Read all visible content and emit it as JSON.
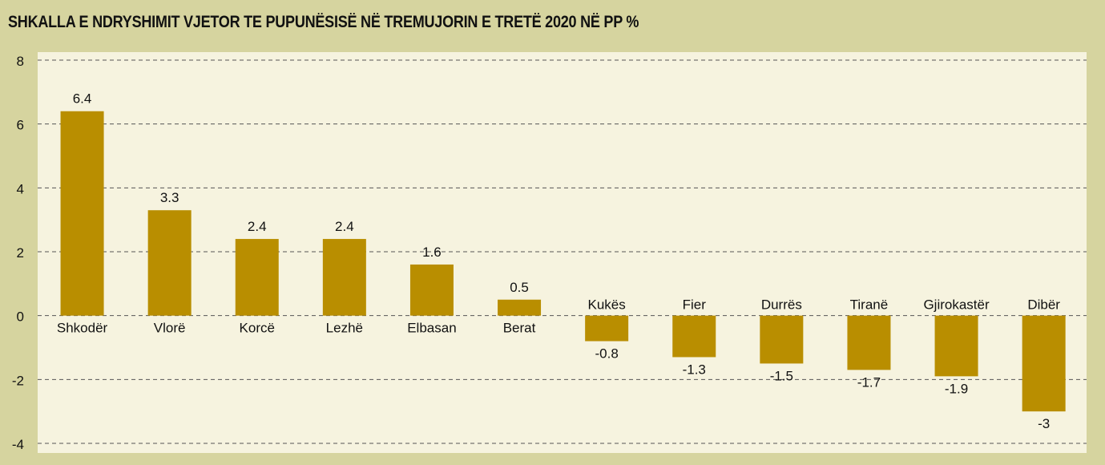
{
  "chart_data": {
    "type": "bar",
    "title": "SHKALLA E NDRYSHIMIT VJETOR TE PUPUNËSISË NË TREMUJORIN E TRETË 2020 NË PP %",
    "xlabel": "",
    "ylabel": "",
    "categories": [
      "Shkodër",
      "Vlorë",
      "Korcë",
      "Lezhë",
      "Elbasan",
      "Berat",
      "Kukës",
      "Fier",
      "Durrës",
      "Tiranë",
      "Gjirokastër",
      "Dibër"
    ],
    "values": [
      6.4,
      3.3,
      2.4,
      2.4,
      1.6,
      0.5,
      -0.8,
      -1.3,
      -1.5,
      -1.7,
      -1.9,
      -3
    ],
    "value_labels": [
      "6.4",
      "3.3",
      "2.4",
      "2.4",
      "1.6",
      "0.5",
      "-0.8",
      "-1.3",
      "-1.5",
      "-1.7",
      "-1.9",
      "-3"
    ],
    "ylim": [
      -4,
      8
    ],
    "yticks": [
      "8",
      "6",
      "4",
      "2",
      "0",
      "-2",
      "-4"
    ],
    "ytick_values": [
      8,
      6,
      4,
      2,
      0,
      -2,
      -4
    ],
    "grid": true,
    "legend": "none",
    "colors": {
      "background": "#d6d49f",
      "plot_area": "#f6f3df",
      "bar": "#b98e00",
      "text": "#111111",
      "grid": "#555555"
    }
  }
}
